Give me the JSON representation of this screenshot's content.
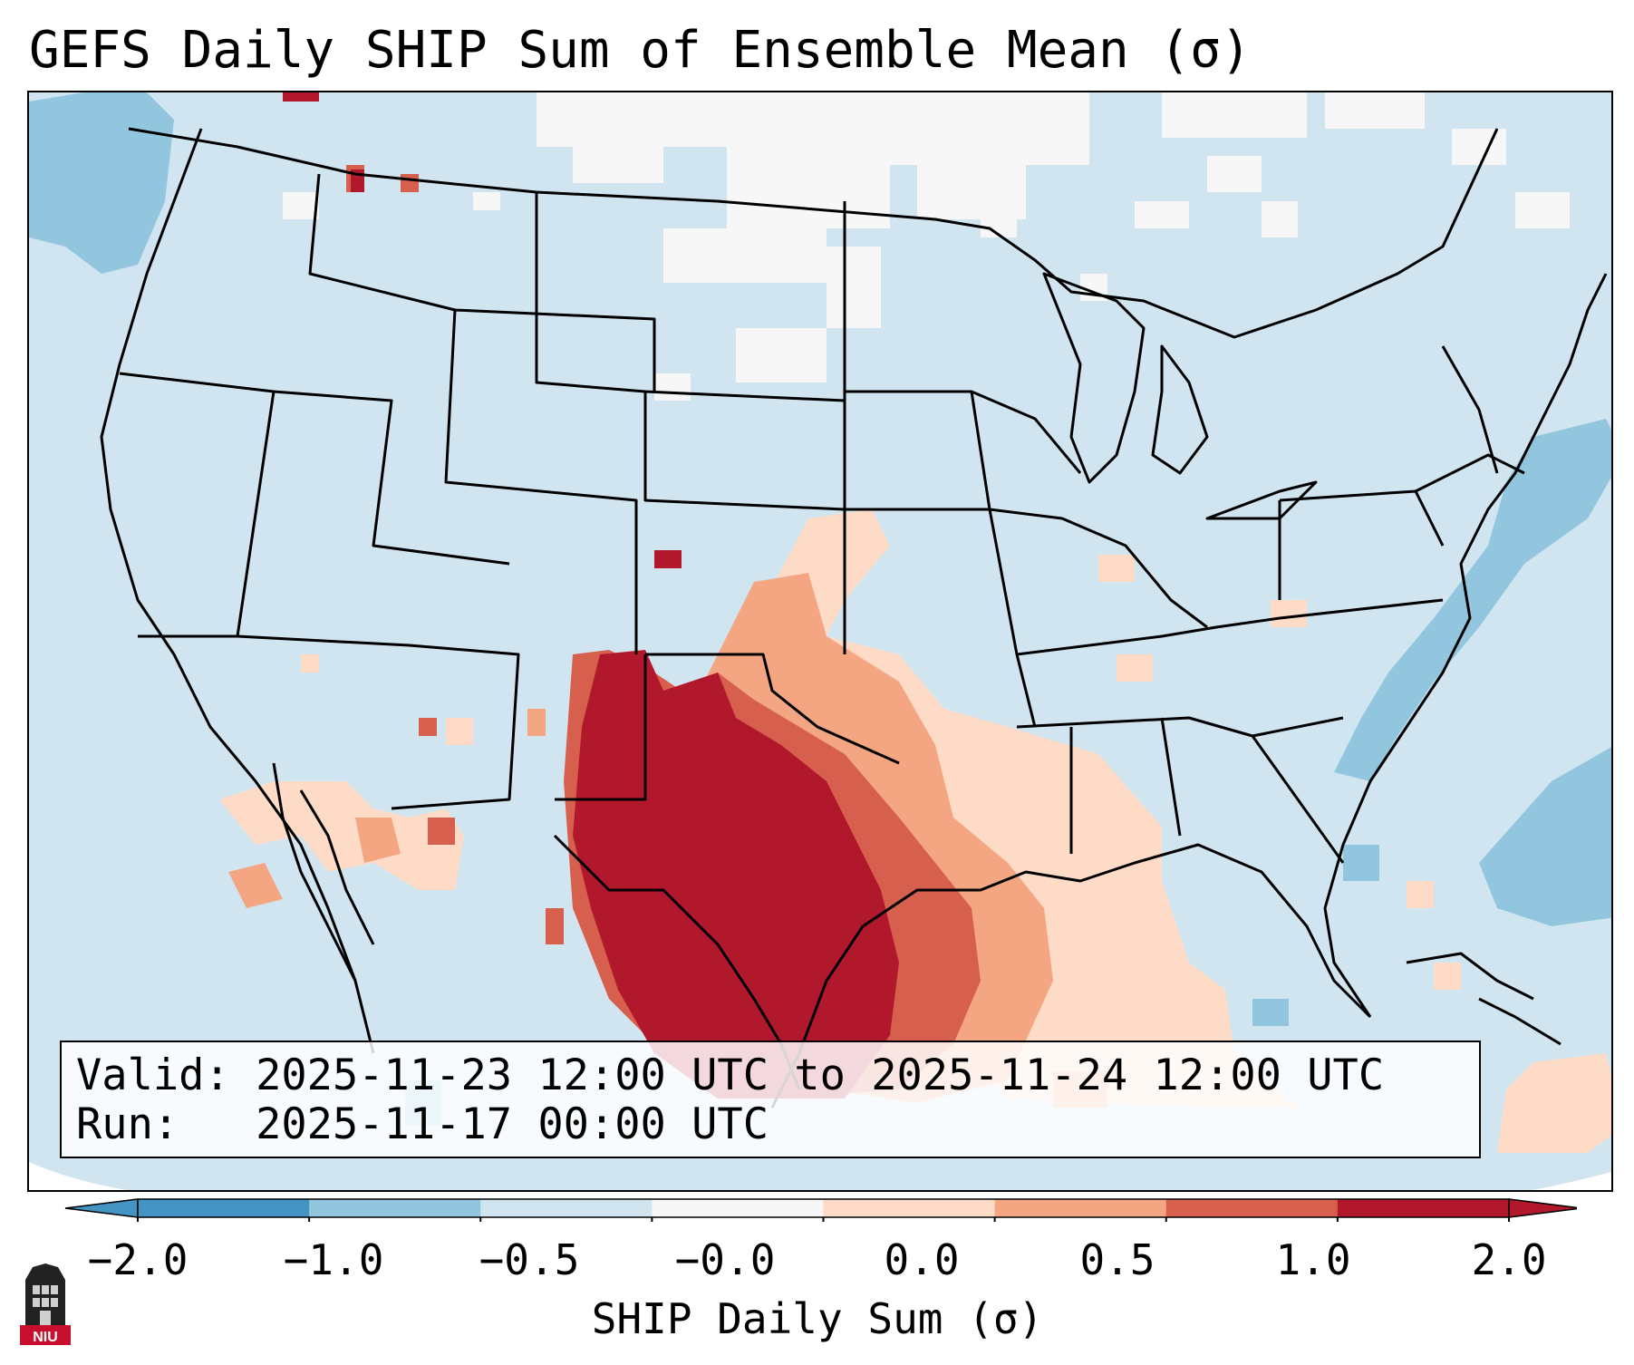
{
  "title": "GEFS Daily SHIP Sum of Ensemble Mean (σ)",
  "info": {
    "valid_label": "Valid:",
    "valid_value": "2025-11-23 12:00 UTC to 2025-11-24 12:00 UTC",
    "run_label": "Run:",
    "run_value": "2025-11-17 00:00 UTC"
  },
  "colorbar": {
    "label": "SHIP Daily Sum (σ)",
    "ticks": [
      "−2.0",
      "−1.0",
      "−0.5",
      "−0.0",
      "0.0",
      "0.5",
      "1.0",
      "2.0"
    ],
    "colors": [
      "#4393c3",
      "#92c5de",
      "#d1e5f0",
      "#f7f7f7",
      "#fddbc7",
      "#f4a582",
      "#d6604d",
      "#b2182b"
    ],
    "extend": "both"
  },
  "map": {
    "region": "Continental United States",
    "projection": "Lambert conformal",
    "background_color": "#d1e5f0",
    "max_anomaly_region": "Texas / southern Great Plains"
  },
  "logo": {
    "text": "NIU",
    "color": "#c8102e"
  }
}
